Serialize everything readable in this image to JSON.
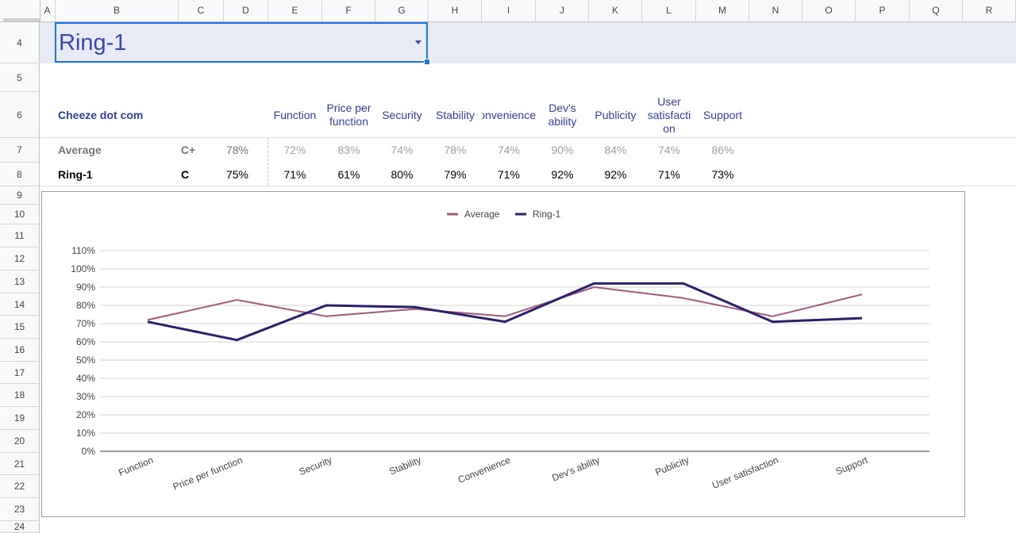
{
  "columns": [
    "A",
    "B",
    "C",
    "D",
    "E",
    "F",
    "G",
    "H",
    "I",
    "J",
    "K",
    "L",
    "M",
    "N",
    "O",
    "P",
    "Q",
    "R"
  ],
  "rows": [
    "4",
    "5",
    "6",
    "7",
    "8",
    "9",
    "10",
    "11",
    "12",
    "13",
    "14",
    "15",
    "16",
    "17",
    "18",
    "19",
    "20",
    "21",
    "22",
    "23",
    "24"
  ],
  "selector": {
    "value": "Ring-1"
  },
  "table": {
    "title": "Cheeze dot com",
    "headers": [
      "Function",
      "Price per\nfunction",
      "Security",
      "Stability",
      "Convenience",
      "Dev's\nability",
      "Publicity",
      "User\nsatisfacti\non",
      "Support"
    ],
    "average": {
      "label": "Average",
      "grade": "C+",
      "overall": "78%",
      "values": [
        "72%",
        "83%",
        "74%",
        "78%",
        "74%",
        "90%",
        "84%",
        "74%",
        "86%"
      ]
    },
    "ring": {
      "label": "Ring-1",
      "grade": "C",
      "overall": "75%",
      "values": [
        "71%",
        "61%",
        "80%",
        "79%",
        "71%",
        "92%",
        "92%",
        "71%",
        "73%"
      ]
    }
  },
  "chart_data": {
    "type": "line",
    "categories": [
      "Function",
      "Price per function",
      "Security",
      "Stability",
      "Convenience",
      "Dev's ability",
      "Publicity",
      "User satisfaction",
      "Support"
    ],
    "series": [
      {
        "name": "Average",
        "values": [
          72,
          83,
          74,
          78,
          74,
          90,
          84,
          74,
          86
        ],
        "color": "#a3597e"
      },
      {
        "name": "Ring-1",
        "values": [
          71,
          61,
          80,
          79,
          71,
          92,
          92,
          71,
          73
        ],
        "color": "#2c1f6b"
      }
    ],
    "y_ticks": [
      "0%",
      "10%",
      "20%",
      "30%",
      "40%",
      "50%",
      "60%",
      "70%",
      "80%",
      "90%",
      "100%",
      "110%"
    ],
    "ylim": [
      0,
      110
    ],
    "legend_position": "top-center",
    "grid": true
  }
}
